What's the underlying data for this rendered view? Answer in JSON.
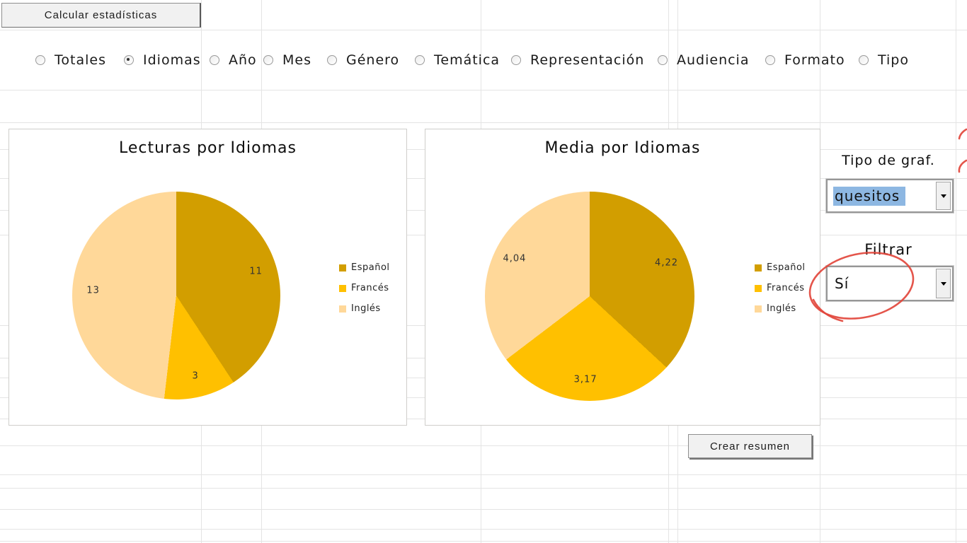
{
  "toolbar": {
    "calcular_button": "Calcular estadísticas"
  },
  "category_selector": {
    "options": [
      {
        "label": "Totales",
        "selected": false
      },
      {
        "label": "Idiomas",
        "selected": true
      },
      {
        "label": "Año",
        "selected": false
      },
      {
        "label": "Mes",
        "selected": false
      },
      {
        "label": "Género",
        "selected": false
      },
      {
        "label": "Temática",
        "selected": false
      },
      {
        "label": "Representación",
        "selected": false
      },
      {
        "label": "Audiencia",
        "selected": false
      },
      {
        "label": "Formato",
        "selected": false
      },
      {
        "label": "Tipo",
        "selected": false
      }
    ]
  },
  "chart_data": [
    {
      "type": "pie",
      "title": "Lecturas por Idiomas",
      "categories": [
        "Español",
        "Francés",
        "Inglés"
      ],
      "values": [
        11,
        3,
        13
      ],
      "data_labels": [
        "11",
        "3",
        "13"
      ],
      "colors": [
        "#D29E00",
        "#FFC000",
        "#FFD899"
      ],
      "legend_position": "right",
      "start_angle_deg": 0,
      "direction": "clockwise"
    },
    {
      "type": "pie",
      "title": "Media por Idiomas",
      "categories": [
        "Español",
        "Francés",
        "Inglés"
      ],
      "values": [
        4.22,
        3.17,
        4.04
      ],
      "data_labels": [
        "4,22",
        "3,17",
        "4,04"
      ],
      "colors": [
        "#D29E00",
        "#FFC000",
        "#FFD899"
      ],
      "legend_position": "right",
      "start_angle_deg": 0,
      "direction": "clockwise"
    }
  ],
  "side_panel": {
    "tipo_label": "Tipo de graf.",
    "tipo_value": "quesitos",
    "filtrar_label": "Filtrar",
    "filtrar_value": "Sí"
  },
  "summary_button": {
    "label": "Crear resumen"
  },
  "colors": {
    "pie_espanol": "#D29E00",
    "pie_frances": "#FFC000",
    "pie_ingles": "#FFD899",
    "selection_blue": "#8DB7E2",
    "annotation_red": "#E2473C",
    "grid_line": "#E4E4E4"
  }
}
